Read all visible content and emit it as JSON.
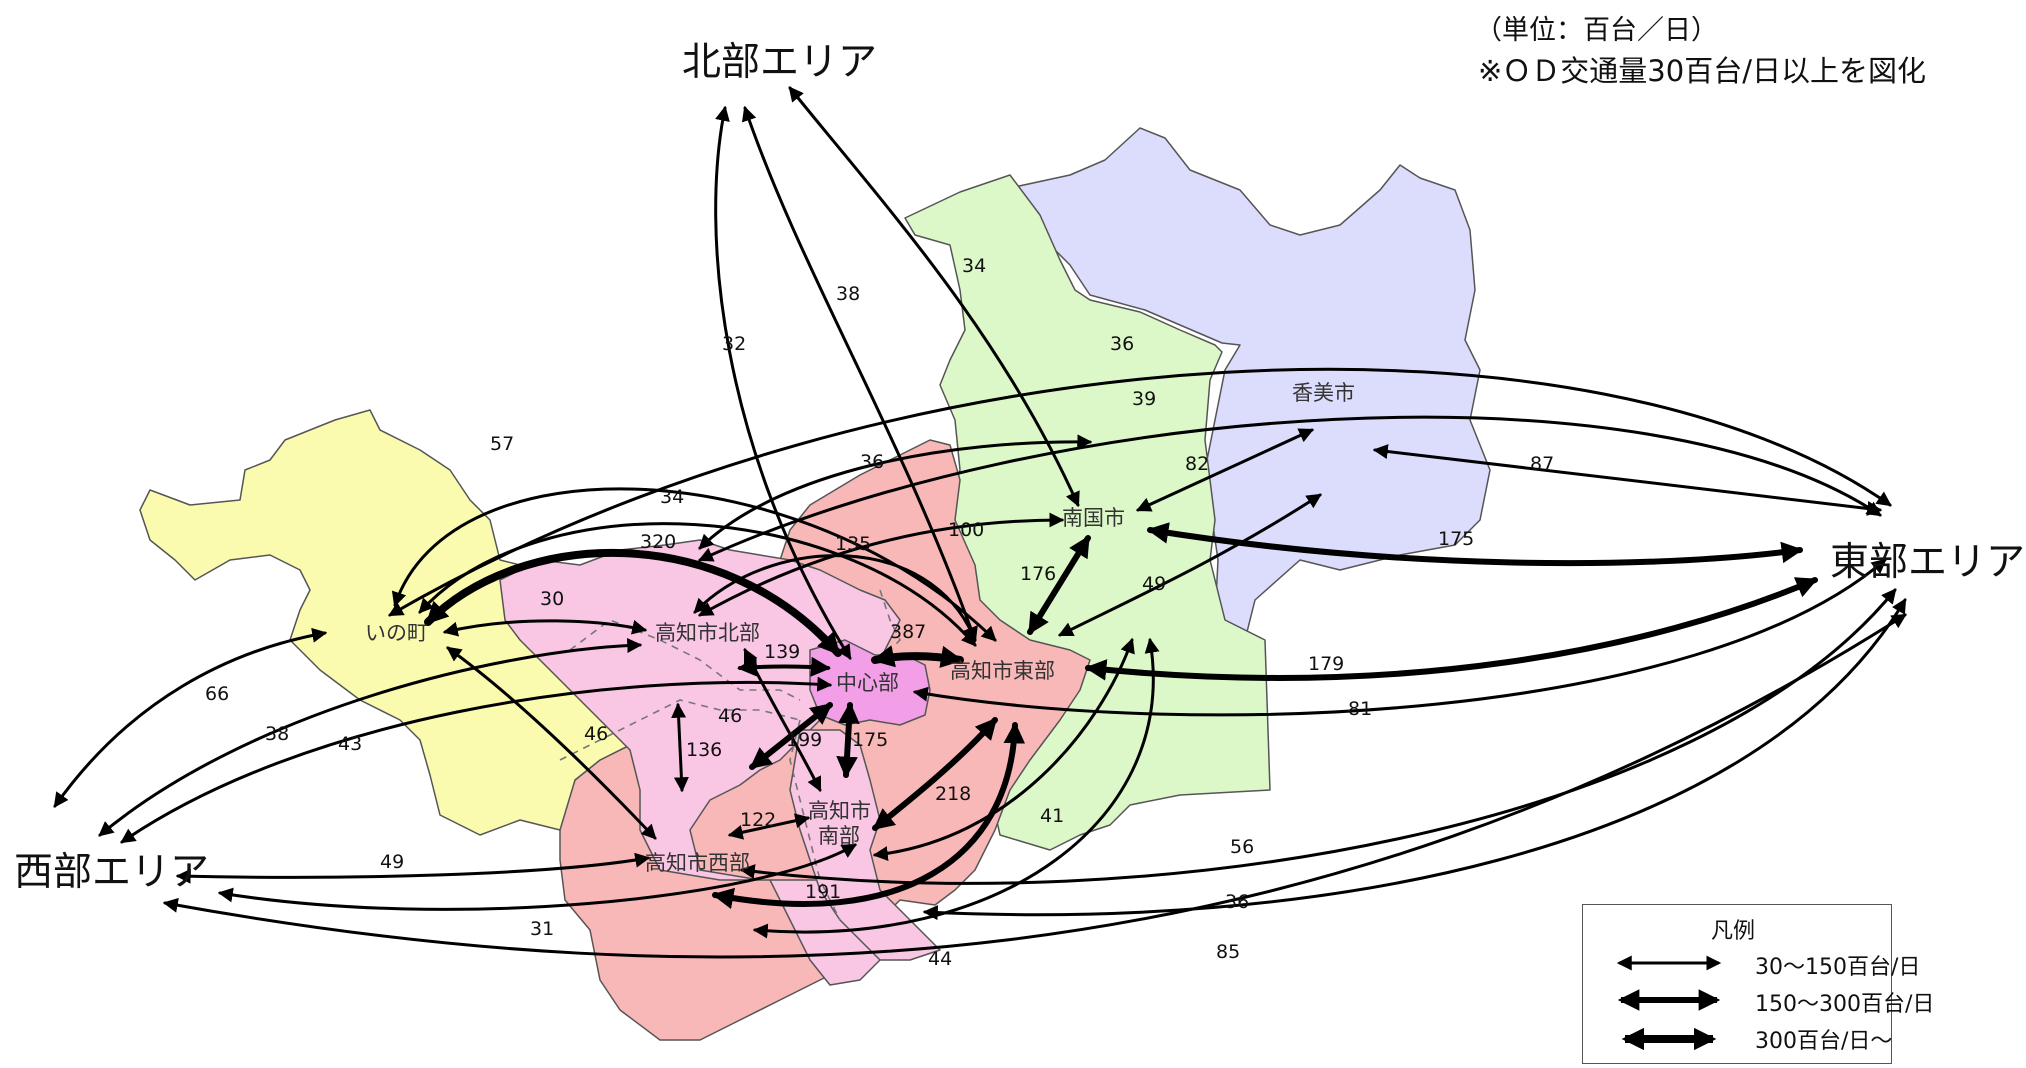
{
  "header": {
    "unit_note": "（単位：百台／日）",
    "threshold_note": "※ＯＤ交通量30百台/日以上を図化"
  },
  "areas": {
    "north": "北部エリア",
    "east": "東部エリア",
    "west": "西部エリア"
  },
  "cities": {
    "ino": "いの町",
    "kochi_north": "高知市北部",
    "center": "中心部",
    "kochi_east": "高知市東部",
    "kochi_south": "高知市南部",
    "kochi_west": "高知市西部",
    "nankoku": "南国市",
    "kami": "香美市"
  },
  "region_colors": {
    "ino": "#fbfbb0",
    "kochi_outer": "#f8b8b8",
    "kochi_inner": "#f9c6e4",
    "center": "#f29fe8",
    "nankoku": "#dcf8c8",
    "kami": "#dcdcfc"
  },
  "flows": [
    {
      "from": "北部エリア",
      "to": "中心部",
      "value": "32"
    },
    {
      "from": "北部エリア",
      "to": "高知市東部",
      "value": "38"
    },
    {
      "from": "北部エリア",
      "to": "南国市",
      "value": "34"
    },
    {
      "from": "東部エリア",
      "to": "いの町",
      "value": "36"
    },
    {
      "from": "東部エリア",
      "to": "高知市北部",
      "value": "39"
    },
    {
      "from": "いの町",
      "to": "高知市東部",
      "value": "57"
    },
    {
      "from": "いの町",
      "to": "高知市東部",
      "value": "34"
    },
    {
      "from": "南国市",
      "to": "高知市北部",
      "value": "36"
    },
    {
      "from": "香美市",
      "to": "南国市",
      "value": "82"
    },
    {
      "from": "香美市",
      "to": "東部エリア",
      "value": "87"
    },
    {
      "from": "南国市",
      "to": "東部エリア",
      "value": "175"
    },
    {
      "from": "南国市",
      "to": "高知市北部",
      "value": "100"
    },
    {
      "from": "高知市北部",
      "to": "高知市東部",
      "value": "135"
    },
    {
      "from": "いの町",
      "to": "中心部",
      "value": "320"
    },
    {
      "from": "南国市",
      "to": "高知市東部",
      "value": "176"
    },
    {
      "from": "香美市",
      "to": "高知市東部",
      "value": "49"
    },
    {
      "from": "いの町",
      "to": "高知市北部",
      "value": "30"
    },
    {
      "from": "中心部",
      "to": "高知市東部",
      "value": "387"
    },
    {
      "from": "高知市北部",
      "to": "中心部",
      "value": "139"
    },
    {
      "from": "高知市東部",
      "to": "東部エリア",
      "value": "179"
    },
    {
      "from": "中心部",
      "to": "東部エリア",
      "value": "81"
    },
    {
      "from": "西部エリア",
      "to": "いの町",
      "value": "66"
    },
    {
      "from": "西部エリア",
      "to": "高知市北部",
      "value": "38"
    },
    {
      "from": "西部エリア",
      "to": "中心部",
      "value": "43"
    },
    {
      "from": "いの町",
      "to": "高知市西部",
      "value": "46"
    },
    {
      "from": "高知市北部",
      "to": "高知市南部",
      "value": "46"
    },
    {
      "from": "高知市北部",
      "to": "高知市西部",
      "value": "136"
    },
    {
      "from": "中心部",
      "to": "高知市西部",
      "value": "199"
    },
    {
      "from": "中心部",
      "to": "高知市南部",
      "value": "175"
    },
    {
      "from": "高知市西部",
      "to": "高知市南部",
      "value": "122"
    },
    {
      "from": "高知市東部",
      "to": "高知市南部",
      "value": "218"
    },
    {
      "from": "高知市東部",
      "to": "高知市西部",
      "value": "191"
    },
    {
      "from": "南国市",
      "to": "高知市南部",
      "value": "41"
    },
    {
      "from": "西部エリア",
      "to": "高知市西部",
      "value": "49"
    },
    {
      "from": "西部エリア",
      "to": "中心部",
      "value": "31"
    },
    {
      "from": "南国市",
      "to": "高知市西部",
      "value": "44"
    },
    {
      "from": "高知市西部",
      "to": "東部エリア",
      "value": "56"
    },
    {
      "from": "高知市南部",
      "to": "東部エリア",
      "value": "36"
    },
    {
      "from": "西部エリア",
      "to": "東部エリア",
      "value": "85"
    }
  ],
  "legend": {
    "title": "凡例",
    "items": [
      {
        "label": "30～150百台/日",
        "class": "30-150"
      },
      {
        "label": "150～300百台/日",
        "class": "150-300"
      },
      {
        "label": "300百台/日～",
        "class": "300+"
      }
    ]
  }
}
